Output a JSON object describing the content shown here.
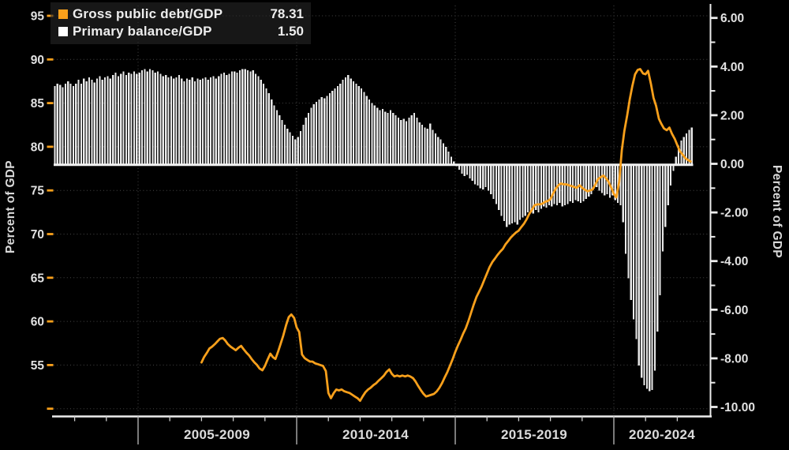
{
  "legend": {
    "items": [
      {
        "label": "Gross public debt/GDP",
        "value": "78.31"
      },
      {
        "label": "Primary balance/GDP",
        "value": "1.50"
      }
    ]
  },
  "chart_data": {
    "type": "combo",
    "background": "#000000",
    "grid": "dotted",
    "colors": {
      "line": "#f9a01b",
      "bars": "#e9e9e9",
      "grid": "#474747",
      "axis": "#ededed",
      "text": "#e2e2e2",
      "divider": "#bdbdbd",
      "legend_bg": "#262626"
    },
    "left_axis": {
      "title": "Percent of GDP",
      "tick_values": [
        95,
        90,
        85,
        80,
        75,
        70,
        65,
        60,
        55
      ],
      "tick_labels": [
        "95",
        "90",
        "85",
        "80",
        "75",
        "70",
        "65",
        "60",
        "55"
      ],
      "unlabeled_tick": 50,
      "tick_color": "#f9a01b"
    },
    "right_axis": {
      "title": "Percent of GDP",
      "tick_values": [
        6,
        4,
        2,
        0,
        -2,
        -4,
        -6,
        -8,
        -10
      ],
      "tick_labels": [
        "6.00",
        "4.00",
        "2.00",
        "0.00",
        "-2.00",
        "-4.00",
        "-6.00",
        "-8.00",
        "-10.00"
      ],
      "minor_tick_values": [
        5,
        3,
        1,
        -1,
        -3,
        -5,
        -7,
        -9
      ],
      "tick_color": "#ededed"
    },
    "x_axis": {
      "period_labels": [
        "2005-2009",
        "2010-2014",
        "2015-2019",
        "2020-2024"
      ],
      "period_boundaries_years": [
        2005,
        2010,
        2015,
        2020
      ],
      "year_tick_start": 2003,
      "year_tick_end": 2022
    },
    "series": [
      {
        "name": "Gross public debt/GDP",
        "type": "line",
        "axis": "left",
        "last_value": 78.31,
        "points": [
          [
            2007.0,
            55.3
          ],
          [
            2007.08,
            55.9
          ],
          [
            2007.17,
            56.4
          ],
          [
            2007.25,
            56.9
          ],
          [
            2007.33,
            57.1
          ],
          [
            2007.42,
            57.4
          ],
          [
            2007.5,
            57.7
          ],
          [
            2007.58,
            58.0
          ],
          [
            2007.67,
            58.1
          ],
          [
            2007.75,
            57.8
          ],
          [
            2007.83,
            57.4
          ],
          [
            2007.92,
            57.1
          ],
          [
            2008.0,
            56.9
          ],
          [
            2008.08,
            56.7
          ],
          [
            2008.17,
            57.0
          ],
          [
            2008.25,
            57.2
          ],
          [
            2008.33,
            56.8
          ],
          [
            2008.42,
            56.4
          ],
          [
            2008.5,
            56.1
          ],
          [
            2008.58,
            55.7
          ],
          [
            2008.67,
            55.3
          ],
          [
            2008.75,
            55.0
          ],
          [
            2008.83,
            54.6
          ],
          [
            2008.92,
            54.4
          ],
          [
            2009.0,
            54.9
          ],
          [
            2009.08,
            55.6
          ],
          [
            2009.17,
            56.3
          ],
          [
            2009.25,
            55.9
          ],
          [
            2009.33,
            55.7
          ],
          [
            2009.42,
            56.6
          ],
          [
            2009.5,
            57.5
          ],
          [
            2009.58,
            58.4
          ],
          [
            2009.67,
            59.6
          ],
          [
            2009.75,
            60.5
          ],
          [
            2009.83,
            60.8
          ],
          [
            2009.92,
            60.4
          ],
          [
            2010.0,
            59.3
          ],
          [
            2010.08,
            58.8
          ],
          [
            2010.17,
            56.2
          ],
          [
            2010.25,
            55.8
          ],
          [
            2010.33,
            55.6
          ],
          [
            2010.42,
            55.4
          ],
          [
            2010.5,
            55.4
          ],
          [
            2010.58,
            55.2
          ],
          [
            2010.67,
            55.1
          ],
          [
            2010.75,
            55.0
          ],
          [
            2010.83,
            54.9
          ],
          [
            2010.92,
            54.3
          ],
          [
            2011.0,
            51.8
          ],
          [
            2011.08,
            51.2
          ],
          [
            2011.17,
            51.8
          ],
          [
            2011.25,
            52.2
          ],
          [
            2011.33,
            52.1
          ],
          [
            2011.42,
            52.2
          ],
          [
            2011.5,
            52.0
          ],
          [
            2011.58,
            51.9
          ],
          [
            2011.67,
            51.8
          ],
          [
            2011.75,
            51.6
          ],
          [
            2011.83,
            51.4
          ],
          [
            2011.92,
            51.2
          ],
          [
            2012.0,
            50.9
          ],
          [
            2012.08,
            51.4
          ],
          [
            2012.17,
            51.9
          ],
          [
            2012.25,
            52.2
          ],
          [
            2012.33,
            52.4
          ],
          [
            2012.42,
            52.7
          ],
          [
            2012.5,
            52.9
          ],
          [
            2012.58,
            53.2
          ],
          [
            2012.67,
            53.5
          ],
          [
            2012.75,
            53.8
          ],
          [
            2012.83,
            54.2
          ],
          [
            2012.92,
            54.5
          ],
          [
            2013.0,
            54.0
          ],
          [
            2013.08,
            53.7
          ],
          [
            2013.17,
            53.8
          ],
          [
            2013.25,
            53.7
          ],
          [
            2013.33,
            53.8
          ],
          [
            2013.42,
            53.7
          ],
          [
            2013.5,
            53.8
          ],
          [
            2013.58,
            53.7
          ],
          [
            2013.67,
            53.5
          ],
          [
            2013.75,
            53.1
          ],
          [
            2013.83,
            52.6
          ],
          [
            2013.92,
            52.1
          ],
          [
            2014.0,
            51.7
          ],
          [
            2014.08,
            51.4
          ],
          [
            2014.17,
            51.5
          ],
          [
            2014.25,
            51.6
          ],
          [
            2014.33,
            51.7
          ],
          [
            2014.42,
            52.0
          ],
          [
            2014.5,
            52.4
          ],
          [
            2014.58,
            52.9
          ],
          [
            2014.67,
            53.6
          ],
          [
            2014.75,
            54.2
          ],
          [
            2014.83,
            54.9
          ],
          [
            2014.92,
            55.7
          ],
          [
            2015.0,
            56.5
          ],
          [
            2015.08,
            57.2
          ],
          [
            2015.17,
            57.9
          ],
          [
            2015.25,
            58.6
          ],
          [
            2015.33,
            59.2
          ],
          [
            2015.42,
            60.1
          ],
          [
            2015.5,
            61.0
          ],
          [
            2015.58,
            61.9
          ],
          [
            2015.67,
            62.8
          ],
          [
            2015.75,
            63.4
          ],
          [
            2015.83,
            64.0
          ],
          [
            2015.92,
            64.8
          ],
          [
            2016.0,
            65.5
          ],
          [
            2016.08,
            66.2
          ],
          [
            2016.17,
            66.8
          ],
          [
            2016.25,
            67.2
          ],
          [
            2016.33,
            67.6
          ],
          [
            2016.42,
            68.0
          ],
          [
            2016.5,
            68.3
          ],
          [
            2016.58,
            68.8
          ],
          [
            2016.67,
            69.2
          ],
          [
            2016.75,
            69.6
          ],
          [
            2016.83,
            69.9
          ],
          [
            2016.92,
            70.2
          ],
          [
            2017.0,
            70.4
          ],
          [
            2017.08,
            70.8
          ],
          [
            2017.17,
            71.2
          ],
          [
            2017.25,
            71.7
          ],
          [
            2017.33,
            72.3
          ],
          [
            2017.42,
            72.8
          ],
          [
            2017.5,
            73.3
          ],
          [
            2017.58,
            73.4
          ],
          [
            2017.67,
            73.4
          ],
          [
            2017.75,
            73.5
          ],
          [
            2017.83,
            73.7
          ],
          [
            2017.92,
            73.8
          ],
          [
            2018.0,
            74.0
          ],
          [
            2018.08,
            74.6
          ],
          [
            2018.17,
            75.2
          ],
          [
            2018.25,
            75.6
          ],
          [
            2018.33,
            75.8
          ],
          [
            2018.42,
            75.7
          ],
          [
            2018.5,
            75.7
          ],
          [
            2018.58,
            75.6
          ],
          [
            2018.67,
            75.5
          ],
          [
            2018.75,
            75.4
          ],
          [
            2018.83,
            75.3
          ],
          [
            2018.92,
            75.6
          ],
          [
            2019.0,
            75.3
          ],
          [
            2019.08,
            75.1
          ],
          [
            2019.17,
            74.9
          ],
          [
            2019.25,
            75.0
          ],
          [
            2019.33,
            75.1
          ],
          [
            2019.42,
            75.7
          ],
          [
            2019.5,
            76.3
          ],
          [
            2019.58,
            76.5
          ],
          [
            2019.67,
            76.7
          ],
          [
            2019.75,
            76.4
          ],
          [
            2019.83,
            76.0
          ],
          [
            2019.92,
            75.3
          ],
          [
            2020.0,
            74.6
          ],
          [
            2020.08,
            74.2
          ],
          [
            2020.17,
            76.0
          ],
          [
            2020.25,
            79.6
          ],
          [
            2020.33,
            81.8
          ],
          [
            2020.42,
            83.6
          ],
          [
            2020.5,
            85.4
          ],
          [
            2020.58,
            86.9
          ],
          [
            2020.67,
            88.3
          ],
          [
            2020.75,
            88.8
          ],
          [
            2020.83,
            88.9
          ],
          [
            2020.92,
            88.4
          ],
          [
            2021.0,
            88.3
          ],
          [
            2021.08,
            88.7
          ],
          [
            2021.17,
            87.2
          ],
          [
            2021.25,
            85.6
          ],
          [
            2021.33,
            84.7
          ],
          [
            2021.42,
            83.2
          ],
          [
            2021.5,
            82.6
          ],
          [
            2021.58,
            82.1
          ],
          [
            2021.67,
            81.9
          ],
          [
            2021.75,
            82.2
          ],
          [
            2021.83,
            81.5
          ],
          [
            2021.92,
            80.9
          ],
          [
            2022.0,
            80.2
          ],
          [
            2022.08,
            79.5
          ],
          [
            2022.17,
            79.1
          ],
          [
            2022.25,
            78.7
          ],
          [
            2022.33,
            78.5
          ],
          [
            2022.42,
            78.31
          ]
        ]
      },
      {
        "name": "Primary balance/GDP",
        "type": "bar",
        "axis": "right",
        "last_value": 1.5,
        "start_year_fraction": 2002.375,
        "step_months": 1,
        "values": [
          3.2,
          3.3,
          3.25,
          3.15,
          3.3,
          3.4,
          3.3,
          3.2,
          3.3,
          3.45,
          3.3,
          3.5,
          3.4,
          3.55,
          3.45,
          3.35,
          3.5,
          3.6,
          3.45,
          3.55,
          3.6,
          3.5,
          3.65,
          3.75,
          3.6,
          3.7,
          3.8,
          3.65,
          3.75,
          3.7,
          3.8,
          3.7,
          3.75,
          3.85,
          3.9,
          3.8,
          3.9,
          3.85,
          3.75,
          3.8,
          3.7,
          3.6,
          3.65,
          3.55,
          3.6,
          3.5,
          3.55,
          3.65,
          3.5,
          3.4,
          3.5,
          3.45,
          3.55,
          3.4,
          3.5,
          3.45,
          3.5,
          3.55,
          3.45,
          3.55,
          3.6,
          3.5,
          3.6,
          3.7,
          3.75,
          3.65,
          3.7,
          3.8,
          3.8,
          3.75,
          3.85,
          3.9,
          3.9,
          3.85,
          3.8,
          3.85,
          3.7,
          3.6,
          3.45,
          3.3,
          3.1,
          2.9,
          2.65,
          2.4,
          2.2,
          2.0,
          1.8,
          1.6,
          1.45,
          1.3,
          1.15,
          1.0,
          1.1,
          1.35,
          1.6,
          1.9,
          2.1,
          2.3,
          2.45,
          2.55,
          2.65,
          2.75,
          2.7,
          2.8,
          2.9,
          3.0,
          3.1,
          3.2,
          3.3,
          3.45,
          3.55,
          3.65,
          3.5,
          3.4,
          3.3,
          3.2,
          3.1,
          2.95,
          2.8,
          2.65,
          2.5,
          2.4,
          2.3,
          2.2,
          2.25,
          2.15,
          2.1,
          2.2,
          2.1,
          2.0,
          1.9,
          1.8,
          1.85,
          1.75,
          1.9,
          2.0,
          2.1,
          1.9,
          1.7,
          1.6,
          1.5,
          1.45,
          1.65,
          1.4,
          1.25,
          1.1,
          1.0,
          0.85,
          0.7,
          0.5,
          0.3,
          0.1,
          -0.1,
          -0.25,
          -0.4,
          -0.5,
          -0.45,
          -0.6,
          -0.7,
          -0.85,
          -0.9,
          -1.0,
          -1.05,
          -0.95,
          -1.1,
          -1.25,
          -1.45,
          -1.65,
          -1.9,
          -2.15,
          -2.35,
          -2.6,
          -2.5,
          -2.45,
          -2.4,
          -2.5,
          -2.3,
          -2.2,
          -2.15,
          -2.0,
          -1.95,
          -2.05,
          -1.9,
          -2.0,
          -1.85,
          -1.75,
          -1.8,
          -1.7,
          -1.75,
          -1.65,
          -1.7,
          -1.6,
          -1.75,
          -1.7,
          -1.65,
          -1.55,
          -1.6,
          -1.5,
          -1.55,
          -1.6,
          -1.55,
          -1.45,
          -1.35,
          -1.25,
          -1.0,
          -0.95,
          -1.1,
          -1.2,
          -1.3,
          -1.25,
          -1.4,
          -1.3,
          -1.5,
          -1.6,
          -1.7,
          -2.4,
          -3.7,
          -4.7,
          -5.6,
          -6.4,
          -7.2,
          -8.3,
          -8.8,
          -9.1,
          -9.25,
          -9.35,
          -9.3,
          -8.5,
          -6.9,
          -5.4,
          -3.6,
          -2.6,
          -1.7,
          -0.9,
          -0.3,
          0.3,
          0.75,
          0.95,
          1.1,
          1.25,
          1.4,
          1.5
        ]
      }
    ]
  }
}
